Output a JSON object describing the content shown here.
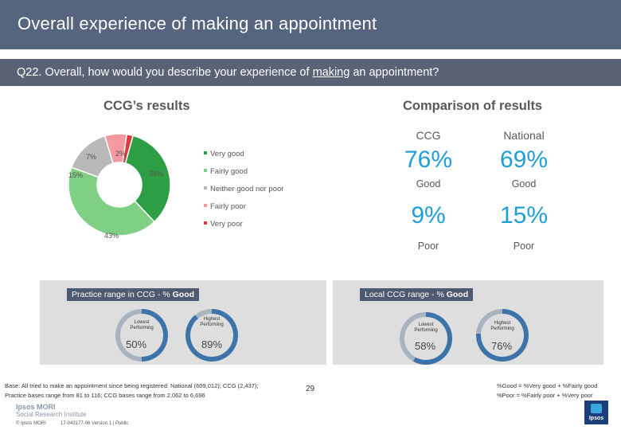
{
  "title": "Overall experience of making an appointment",
  "question": {
    "prefix": "Q22. Overall, how would you describe your experience of ",
    "underlined": "making",
    "suffix": " an appointment?"
  },
  "left_heading": "CCG’s results",
  "right_heading": "Comparison of results",
  "chart_data": {
    "type": "pie",
    "subtype": "donut",
    "categories": [
      "Very good",
      "Fairly good",
      "Neither good nor poor",
      "Fairly poor",
      "Very poor"
    ],
    "values": [
      34,
      43,
      15,
      7,
      2
    ],
    "labels": [
      "34%",
      "43%",
      "15%",
      "7%",
      "2%"
    ],
    "colors": [
      "#2e9e45",
      "#7fcf84",
      "#b8b8b8",
      "#f29aa0",
      "#e0383e"
    ],
    "legend_position": "right"
  },
  "comparison": {
    "columns": [
      "CCG",
      "National"
    ],
    "rows": [
      {
        "ccg": "76%",
        "national": "69%",
        "label": "Good"
      },
      {
        "ccg": "9%",
        "national": "15%",
        "label": "Poor"
      }
    ]
  },
  "practice_range": {
    "tag_prefix": "Practice range in CCG - % ",
    "tag_bold": "Good",
    "lowest": {
      "caption_1": "Lowest",
      "caption_2": "Performing",
      "value": "50%",
      "fraction": 0.5,
      "color": "#3d73a8"
    },
    "highest": {
      "caption_1": "Highest",
      "caption_2": "Performing",
      "value": "89%",
      "fraction": 0.89,
      "color": "#3d73a8"
    }
  },
  "ccg_range": {
    "tag_prefix": "Local CCG range - % ",
    "tag_bold": "Good",
    "lowest": {
      "caption_1": "Lowest",
      "caption_2": "Performing",
      "value": "58%",
      "fraction": 0.58,
      "color": "#3d73a8"
    },
    "highest": {
      "caption_1": "Highest",
      "caption_2": "Performing",
      "value": "76%",
      "fraction": 0.76,
      "color": "#3d73a8"
    }
  },
  "footnote_left": [
    "Base: All tried to make an appointment since being registered: National (609,012); CCG (2,437);",
    "Practice bases range from 81 to 116; CCG bases range from 2,062 to 6,696"
  ],
  "footnote_right": [
    "%Good = %Very good + %Fairly good",
    "%Poor = %Fairly poor + %Very poor"
  ],
  "logo": {
    "line1": "Ipsos MORI",
    "line2": "Social Research Institute",
    "word": "Ipsos"
  },
  "copyright": "© Ipsos MORI",
  "version": "17-043177-06 Version 1 | Public",
  "page_number": "29"
}
